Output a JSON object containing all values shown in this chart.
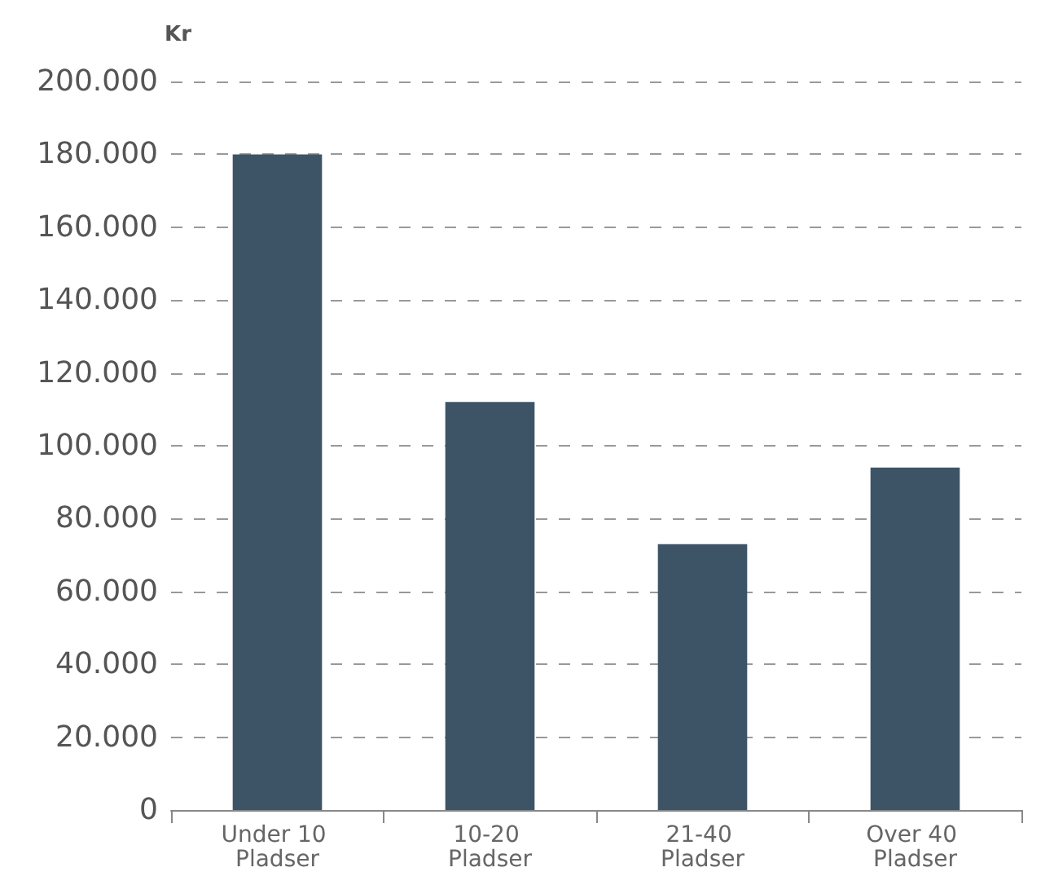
{
  "chart_data": {
    "type": "bar",
    "ylabel": "Kr",
    "categories": [
      "Under 10 Pladser",
      "10-20 Pladser",
      "21-40 Pladser",
      "Over 40 Pladser"
    ],
    "values": [
      180000,
      112000,
      73000,
      94000
    ],
    "color": "#3d5467",
    "ylim": [
      0,
      200000
    ],
    "yticks": [
      {
        "value": 0,
        "label": "0"
      },
      {
        "value": 20000,
        "label": "20.000"
      },
      {
        "value": 40000,
        "label": "40.000"
      },
      {
        "value": 60000,
        "label": "60.000"
      },
      {
        "value": 80000,
        "label": "80.000"
      },
      {
        "value": 100000,
        "label": "100.000"
      },
      {
        "value": 120000,
        "label": "120.000"
      },
      {
        "value": 140000,
        "label": "140.000"
      },
      {
        "value": 160000,
        "label": "160.000"
      },
      {
        "value": 180000,
        "label": "180.000"
      },
      {
        "value": 200000,
        "label": "200.000"
      }
    ],
    "grid": "y"
  }
}
